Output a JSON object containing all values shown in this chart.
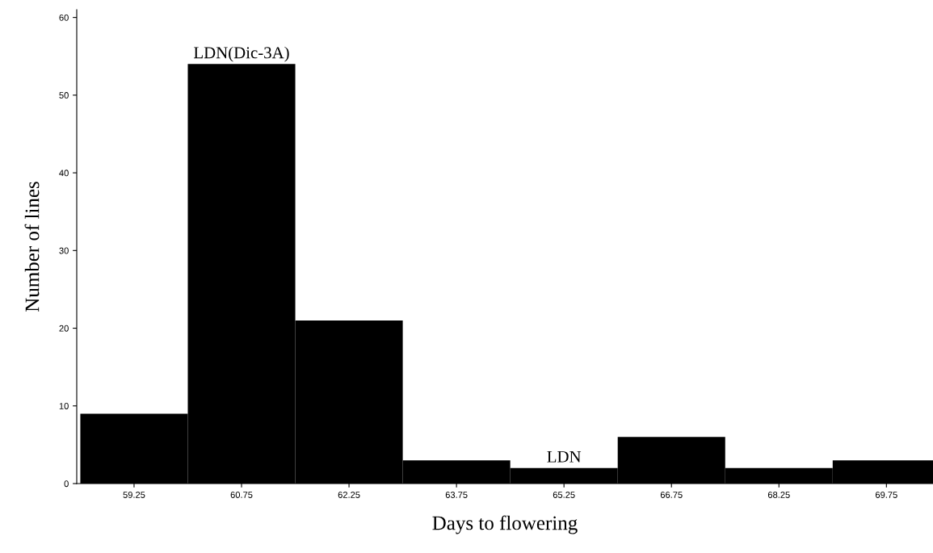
{
  "chart_data": {
    "type": "histogram",
    "xlabel": "Days to flowering",
    "ylabel": "Number of lines",
    "bins": [
      58.5,
      60,
      61.5,
      63,
      64.5,
      66,
      67.5,
      69,
      70.5
    ],
    "values": [
      9,
      54,
      21,
      3,
      2,
      6,
      2,
      3
    ],
    "color": "#000000",
    "xlim": [
      58.45,
      70.4
    ],
    "ylim": [
      0,
      61
    ],
    "xticks": [
      {
        "value": 59.25,
        "label": "59.25"
      },
      {
        "value": 60.75,
        "label": "60.75"
      },
      {
        "value": 62.25,
        "label": "62.25"
      },
      {
        "value": 63.75,
        "label": "63.75"
      },
      {
        "value": 65.25,
        "label": "65.25"
      },
      {
        "value": 66.75,
        "label": "66.75"
      },
      {
        "value": 68.25,
        "label": "68.25"
      },
      {
        "value": 69.75,
        "label": "69.75"
      }
    ],
    "yticks": [
      0,
      10,
      20,
      30,
      40,
      50,
      60
    ],
    "annotations": [
      {
        "text": "LDN(Dic-3A)",
        "x": 60.75,
        "y": 54
      },
      {
        "text": "LDN",
        "x": 65.25,
        "y": 2
      }
    ],
    "grid": false
  }
}
